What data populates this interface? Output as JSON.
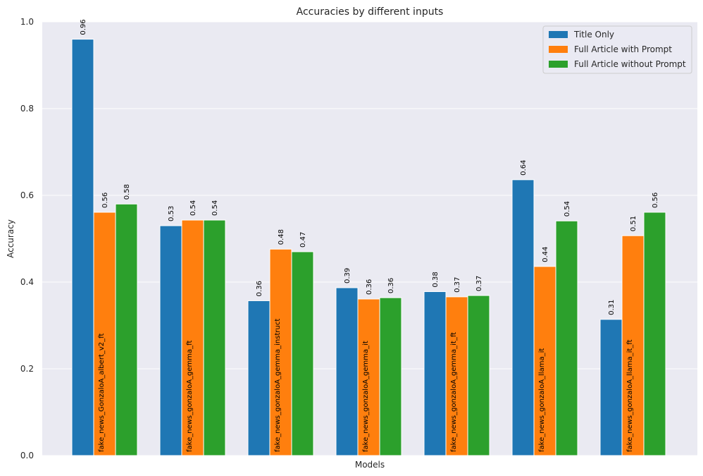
{
  "chart_data": {
    "type": "bar",
    "title": "Accuracies by different inputs",
    "xlabel": "Models",
    "ylabel": "Accuracy",
    "ylim": [
      0,
      1.0
    ],
    "yticks": [
      "0.0",
      "0.2",
      "0.4",
      "0.6",
      "0.8",
      "1.0"
    ],
    "grid": true,
    "legend_position": "top-right",
    "categories": [
      "fake_news_GonzaloA_albert_v2_ft",
      "fake_news_gonzaloA_gemma_ft",
      "fake_news_gonzaloA_gemma_instruct",
      "fake_news_gonzaloA_gemma_it",
      "fake_news_gonzaloA_gemma_it_ft",
      "fake_news_gonzaloA_llama_it",
      "fake_news_gonzaloA_llama_it_ft"
    ],
    "series": [
      {
        "name": "Title Only",
        "color": "#1f77b4",
        "values": [
          0.96,
          0.53,
          0.357,
          0.387,
          0.378,
          0.636,
          0.314
        ],
        "labels": [
          "0.96",
          "0.53",
          "0.36",
          "0.39",
          "0.38",
          "0.64",
          "0.31"
        ]
      },
      {
        "name": "Full Article with Prompt",
        "color": "#ff7f0e",
        "values": [
          0.561,
          0.543,
          0.476,
          0.361,
          0.366,
          0.436,
          0.507
        ],
        "labels": [
          "0.56",
          "0.54",
          "0.48",
          "0.36",
          "0.37",
          "0.44",
          "0.51"
        ]
      },
      {
        "name": "Full Article without Prompt",
        "color": "#2ca02c",
        "values": [
          0.58,
          0.543,
          0.47,
          0.364,
          0.369,
          0.541,
          0.561
        ],
        "labels": [
          "0.58",
          "0.54",
          "0.47",
          "0.36",
          "0.37",
          "0.54",
          "0.56"
        ]
      }
    ]
  }
}
